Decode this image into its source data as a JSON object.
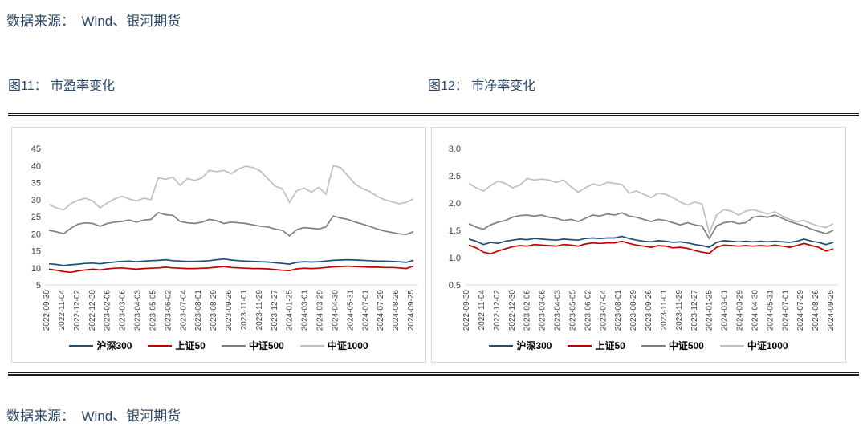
{
  "page": {
    "source_top": "数据来源：　Wind、银河期货",
    "source_bottom": "数据来源：　Wind、银河期货"
  },
  "colors": {
    "text_navy": "#2b4668",
    "hs300": "#1F4E79",
    "sse50": "#C00000",
    "csi500": "#7F7F7F",
    "csi1000": "#BFBFBF",
    "axis_line": "#d9d9d9",
    "tick_text": "#3f3f3f"
  },
  "chart_data": [
    {
      "type": "line",
      "title": "图11： 市盈率变化",
      "xlabel": "",
      "ylabel": "",
      "ylim": [
        5,
        45
      ],
      "yticks": [
        "45",
        "40",
        "35",
        "30",
        "25",
        "20",
        "15",
        "10",
        "5"
      ],
      "grid": false,
      "legend_position": "bottom",
      "x_labels": [
        "2022-09-30",
        "2022-11-04",
        "2022-12-02",
        "2022-12-30",
        "2023-02-06",
        "2023-03-06",
        "2023-04-03",
        "2023-05-05",
        "2023-06-02",
        "2023-07-04",
        "2023-08-01",
        "2023-08-29",
        "2023-09-26",
        "2023-11-01",
        "2023-11-29",
        "2023-12-27",
        "2024-01-25",
        "2024-03-01",
        "2024-03-29",
        "2024-04-30",
        "2024-05-31",
        "2024-07-01",
        "2024-07-29",
        "2024-08-26",
        "2024-09-25"
      ],
      "series": [
        {
          "name": "沪深300",
          "color": "#1F4E79",
          "values": [
            11.2,
            11.0,
            10.7,
            10.9,
            11.1,
            11.3,
            11.4,
            11.2,
            11.5,
            11.7,
            11.9,
            12.0,
            11.8,
            12.0,
            12.1,
            12.2,
            12.4,
            12.1,
            12.0,
            11.9,
            11.9,
            12.0,
            12.1,
            12.4,
            12.6,
            12.3,
            12.1,
            12.0,
            11.9,
            11.8,
            11.7,
            11.5,
            11.3,
            11.1,
            11.6,
            11.8,
            11.7,
            11.8,
            12.0,
            12.2,
            12.3,
            12.4,
            12.3,
            12.2,
            12.1,
            12.0,
            12.0,
            11.9,
            11.8,
            11.6,
            12.2
          ]
        },
        {
          "name": "上证50",
          "color": "#C00000",
          "values": [
            9.6,
            9.3,
            8.9,
            8.7,
            9.1,
            9.4,
            9.6,
            9.4,
            9.7,
            9.9,
            10.0,
            9.8,
            9.6,
            9.8,
            9.9,
            10.0,
            10.2,
            10.0,
            9.9,
            9.8,
            9.8,
            9.9,
            10.0,
            10.2,
            10.4,
            10.1,
            10.0,
            9.9,
            9.8,
            9.8,
            9.7,
            9.5,
            9.3,
            9.2,
            9.7,
            9.9,
            9.8,
            9.9,
            10.1,
            10.3,
            10.4,
            10.5,
            10.4,
            10.3,
            10.2,
            10.2,
            10.1,
            10.1,
            10.0,
            9.8,
            10.5
          ]
        },
        {
          "name": "中证500",
          "color": "#7F7F7F",
          "values": [
            21.0,
            20.6,
            20.0,
            21.6,
            22.8,
            23.2,
            23.0,
            22.2,
            23.0,
            23.4,
            23.6,
            24.0,
            23.4,
            24.0,
            24.2,
            26.2,
            25.6,
            25.4,
            23.6,
            23.2,
            23.0,
            23.4,
            24.2,
            23.8,
            23.0,
            23.4,
            23.2,
            23.0,
            22.6,
            22.2,
            22.0,
            21.4,
            21.0,
            19.4,
            21.2,
            21.8,
            21.6,
            21.4,
            22.0,
            25.2,
            24.6,
            24.2,
            23.4,
            22.8,
            22.2,
            21.4,
            20.8,
            20.4,
            20.0,
            19.8,
            20.6
          ]
        },
        {
          "name": "中证1000",
          "color": "#BFBFBF",
          "values": [
            28.6,
            27.6,
            27.0,
            28.8,
            29.8,
            30.4,
            29.6,
            27.6,
            29.0,
            30.2,
            31.0,
            30.2,
            29.6,
            30.4,
            30.0,
            36.4,
            36.0,
            36.6,
            34.2,
            36.2,
            35.6,
            36.4,
            38.6,
            38.2,
            38.6,
            37.6,
            39.0,
            39.8,
            39.4,
            38.4,
            36.2,
            34.0,
            33.2,
            29.2,
            32.6,
            33.4,
            32.2,
            33.6,
            31.6,
            40.0,
            39.4,
            37.0,
            34.6,
            33.2,
            32.4,
            31.0,
            30.0,
            29.4,
            28.8,
            29.2,
            30.2
          ]
        }
      ]
    },
    {
      "type": "line",
      "title": "图12： 市净率变化",
      "xlabel": "",
      "ylabel": "",
      "ylim": [
        0.5,
        3.0
      ],
      "yticks": [
        "3.0",
        "2.5",
        "2.0",
        "1.5",
        "1.0",
        "0.5"
      ],
      "grid": false,
      "legend_position": "bottom",
      "x_labels": [
        "2022-09-30",
        "2022-11-04",
        "2022-12-02",
        "2022-12-30",
        "2023-02-06",
        "2023-03-06",
        "2023-04-03",
        "2023-05-05",
        "2023-06-02",
        "2023-07-04",
        "2023-08-01",
        "2023-08-29",
        "2023-09-26",
        "2023-11-01",
        "2023-11-29",
        "2023-12-27",
        "2024-01-25",
        "2024-03-01",
        "2024-03-29",
        "2024-04-30",
        "2024-05-31",
        "2024-07-01",
        "2024-07-29",
        "2024-08-26",
        "2024-09-25"
      ],
      "series": [
        {
          "name": "沪深300",
          "color": "#1F4E79",
          "values": [
            1.34,
            1.3,
            1.24,
            1.28,
            1.26,
            1.3,
            1.32,
            1.34,
            1.33,
            1.35,
            1.34,
            1.33,
            1.32,
            1.34,
            1.33,
            1.32,
            1.35,
            1.36,
            1.35,
            1.36,
            1.36,
            1.39,
            1.35,
            1.32,
            1.3,
            1.29,
            1.31,
            1.3,
            1.28,
            1.29,
            1.27,
            1.24,
            1.22,
            1.19,
            1.28,
            1.31,
            1.3,
            1.29,
            1.3,
            1.29,
            1.3,
            1.29,
            1.3,
            1.29,
            1.28,
            1.3,
            1.34,
            1.3,
            1.28,
            1.24,
            1.28
          ]
        },
        {
          "name": "上证50",
          "color": "#C00000",
          "values": [
            1.23,
            1.18,
            1.1,
            1.07,
            1.12,
            1.16,
            1.2,
            1.22,
            1.21,
            1.24,
            1.23,
            1.22,
            1.21,
            1.24,
            1.23,
            1.21,
            1.25,
            1.27,
            1.26,
            1.27,
            1.27,
            1.3,
            1.26,
            1.23,
            1.21,
            1.19,
            1.22,
            1.21,
            1.18,
            1.19,
            1.17,
            1.13,
            1.1,
            1.08,
            1.19,
            1.23,
            1.22,
            1.21,
            1.22,
            1.21,
            1.22,
            1.21,
            1.23,
            1.21,
            1.19,
            1.22,
            1.26,
            1.22,
            1.19,
            1.12,
            1.16
          ]
        },
        {
          "name": "中证500",
          "color": "#7F7F7F",
          "values": [
            1.62,
            1.56,
            1.52,
            1.6,
            1.65,
            1.68,
            1.74,
            1.77,
            1.78,
            1.76,
            1.78,
            1.74,
            1.72,
            1.68,
            1.7,
            1.66,
            1.72,
            1.78,
            1.76,
            1.8,
            1.78,
            1.82,
            1.76,
            1.74,
            1.7,
            1.66,
            1.7,
            1.68,
            1.64,
            1.6,
            1.64,
            1.6,
            1.58,
            1.35,
            1.58,
            1.64,
            1.66,
            1.62,
            1.64,
            1.74,
            1.76,
            1.74,
            1.78,
            1.72,
            1.66,
            1.62,
            1.58,
            1.52,
            1.48,
            1.44,
            1.5
          ]
        },
        {
          "name": "中证1000",
          "color": "#BFBFBF",
          "values": [
            2.36,
            2.28,
            2.22,
            2.32,
            2.4,
            2.36,
            2.28,
            2.33,
            2.45,
            2.42,
            2.44,
            2.42,
            2.38,
            2.42,
            2.3,
            2.2,
            2.28,
            2.35,
            2.32,
            2.38,
            2.36,
            2.34,
            2.18,
            2.22,
            2.16,
            2.1,
            2.18,
            2.16,
            2.1,
            2.02,
            1.96,
            2.02,
            1.98,
            1.45,
            1.78,
            1.88,
            1.85,
            1.78,
            1.85,
            1.88,
            1.84,
            1.8,
            1.84,
            1.76,
            1.7,
            1.66,
            1.68,
            1.62,
            1.58,
            1.55,
            1.62
          ]
        }
      ]
    }
  ]
}
